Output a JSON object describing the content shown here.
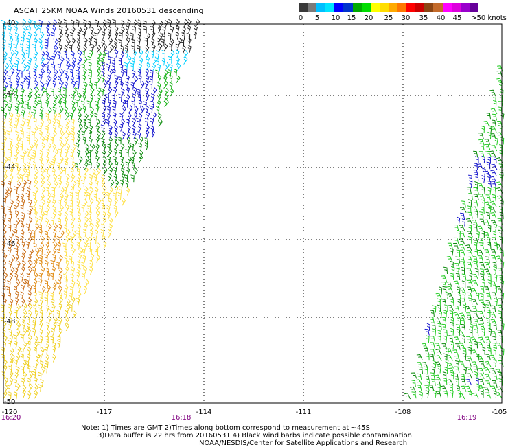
{
  "title": "ASCAT 25KM NOAA Winds 20160531 descending",
  "legend": {
    "labels": [
      "0",
      "5",
      "10",
      "15",
      "20",
      "25",
      "30",
      "35",
      "40",
      "45",
      ">50 knots"
    ],
    "colors": [
      "#3a3a3a",
      "#7a7a7a",
      "#00bfff",
      "#00e5ff",
      "#0000ff",
      "#0033cc",
      "#00aa00",
      "#00dd00",
      "#ffff00",
      "#ffdd00",
      "#ffaa00",
      "#ff7700",
      "#ff0000",
      "#cc0000",
      "#8b4513",
      "#c46a2a",
      "#ff00ff",
      "#dd00dd",
      "#9900cc",
      "#660099"
    ]
  },
  "map": {
    "lat_labels": [
      "-40",
      "-42",
      "-44",
      "-46",
      "-48",
      "-50"
    ],
    "lon_labels": [
      "-120",
      "-117",
      "-114",
      "-111",
      "-108",
      "-105"
    ],
    "times": [
      "16:20",
      "16:18",
      "16:19"
    ]
  },
  "note": {
    "line1": "Note: 1) Times are GMT 2)Times along bottom correspond to measurement at ~45S",
    "line2": "3)Data buffer is 22 hrs from 20160531 4) Black wind barbs indicate possible contamination",
    "line3": "NOAA/NESDIS/Center for Satellite Applications and Research"
  }
}
